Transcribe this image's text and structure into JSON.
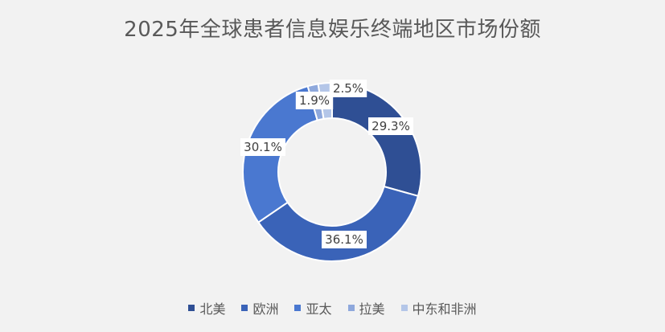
{
  "chart_data": {
    "type": "pie",
    "subtype": "donut",
    "title": "2025年全球患者信息娱乐终端地区市场份额",
    "unit": "%",
    "categories": [
      "北美",
      "欧洲",
      "亚太",
      "拉美",
      "中东和非洲"
    ],
    "values": [
      29.3,
      36.1,
      30.1,
      1.9,
      2.5
    ],
    "data_labels": [
      "29.3%",
      "36.1%",
      "30.1%",
      "1.9%",
      "2.5%"
    ],
    "colors": [
      "#2f4f94",
      "#3a63b8",
      "#4a78d0",
      "#8ea8dc",
      "#b4c6e8"
    ],
    "legend_position": "bottom",
    "start_angle_deg": 0,
    "direction": "clockwise"
  }
}
